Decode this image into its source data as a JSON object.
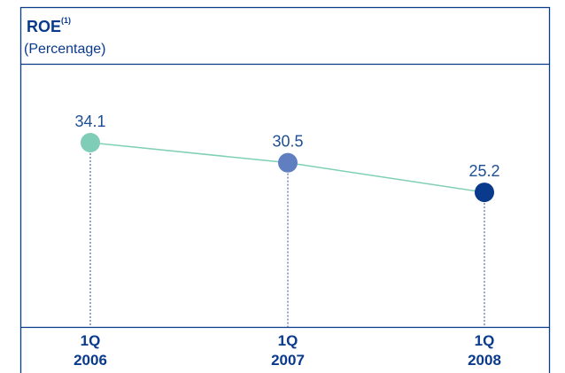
{
  "header": {
    "title": "ROE",
    "title_note": "(1)",
    "subtitle": "(Percentage)"
  },
  "colors": {
    "frame": "#0a3a8c",
    "title_text": "#0a3a8c",
    "line": "#7fcfb6",
    "dotted_drop": "#2b4d96",
    "label_text": "#1f4f93",
    "category_text": "#0a3a8c",
    "point_colors": [
      "#7fcdb6",
      "#5f7fc1",
      "#0a3a8c"
    ]
  },
  "chart_data": {
    "type": "line",
    "categories": [
      [
        "1Q",
        "2006"
      ],
      [
        "1Q",
        "2007"
      ],
      [
        "1Q",
        "2008"
      ]
    ],
    "series": [
      {
        "values": [
          34.1,
          30.5,
          25.2
        ]
      }
    ],
    "data_labels": [
      "34.1",
      "30.5",
      "25.2"
    ],
    "xlabel": "",
    "ylabel": "",
    "grid": false,
    "legend": "none"
  }
}
